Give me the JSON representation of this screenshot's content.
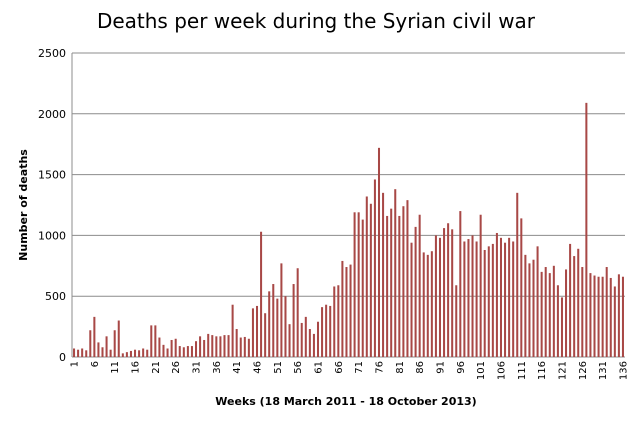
{
  "chart_data": {
    "type": "bar",
    "title": "Deaths per week during the Syrian civil war",
    "xlabel": "Weeks (18 March  2011 - 18 October 2013)",
    "ylabel": "Number of deaths",
    "ylim": [
      0,
      2500
    ],
    "yticks": [
      "0",
      "500",
      "1000",
      "1500",
      "2000",
      "2500"
    ],
    "xtick_labels": [
      "1",
      "6",
      "11",
      "16",
      "21",
      "26",
      "31",
      "36",
      "41",
      "46",
      "51",
      "56",
      "61",
      "66",
      "71",
      "76",
      "81",
      "86",
      "91",
      "96",
      "101",
      "106",
      "111",
      "116",
      "121",
      "126",
      "131",
      "136"
    ],
    "grid": true,
    "bar_color": "#a84846",
    "categories": [
      "1",
      "2",
      "3",
      "4",
      "5",
      "6",
      "7",
      "8",
      "9",
      "10",
      "11",
      "12",
      "13",
      "14",
      "15",
      "16",
      "17",
      "18",
      "19",
      "20",
      "21",
      "22",
      "23",
      "24",
      "25",
      "26",
      "27",
      "28",
      "29",
      "30",
      "31",
      "32",
      "33",
      "34",
      "35",
      "36",
      "37",
      "38",
      "39",
      "40",
      "41",
      "42",
      "43",
      "44",
      "45",
      "46",
      "47",
      "48",
      "49",
      "50",
      "51",
      "52",
      "53",
      "54",
      "55",
      "56",
      "57",
      "58",
      "59",
      "60",
      "61",
      "62",
      "63",
      "64",
      "65",
      "66",
      "67",
      "68",
      "69",
      "70",
      "71",
      "72",
      "73",
      "74",
      "75",
      "76",
      "77",
      "78",
      "79",
      "80",
      "81",
      "82",
      "83",
      "84",
      "85",
      "86",
      "87",
      "88",
      "89",
      "90",
      "91",
      "92",
      "93",
      "94",
      "95",
      "96",
      "97",
      "98",
      "99",
      "100",
      "101",
      "102",
      "103",
      "104",
      "105",
      "106",
      "107",
      "108",
      "109",
      "110",
      "111",
      "112",
      "113",
      "114",
      "115",
      "116",
      "117",
      "118",
      "119",
      "120",
      "121",
      "122",
      "123",
      "124",
      "125",
      "126",
      "127",
      "128",
      "129",
      "130",
      "131",
      "132",
      "133",
      "134",
      "135",
      "136"
    ],
    "values": [
      70,
      60,
      70,
      55,
      220,
      330,
      120,
      80,
      170,
      60,
      220,
      300,
      30,
      40,
      50,
      60,
      55,
      70,
      60,
      260,
      260,
      160,
      100,
      70,
      140,
      150,
      90,
      80,
      90,
      90,
      130,
      170,
      140,
      190,
      180,
      170,
      170,
      180,
      180,
      430,
      230,
      160,
      165,
      150,
      400,
      420,
      1030,
      360,
      540,
      600,
      480,
      770,
      500,
      270,
      600,
      730,
      280,
      330,
      230,
      190,
      290,
      410,
      430,
      420,
      580,
      590,
      790,
      740,
      760,
      1190,
      1190,
      1130,
      1320,
      1260,
      1460,
      1720,
      1350,
      1160,
      1220,
      1380,
      1160,
      1240,
      1290,
      940,
      1070,
      1170,
      860,
      840,
      870,
      1000,
      980,
      1060,
      1100,
      1050,
      590,
      1200,
      950,
      970,
      1000,
      950,
      1170,
      880,
      910,
      930,
      1020,
      980,
      940,
      980,
      950,
      1350,
      1140,
      840,
      770,
      800,
      910,
      700,
      740,
      690,
      750,
      590,
      490,
      720,
      930,
      830,
      890,
      740,
      2090,
      690,
      670,
      660,
      660,
      740,
      650,
      580,
      680,
      660
    ]
  }
}
